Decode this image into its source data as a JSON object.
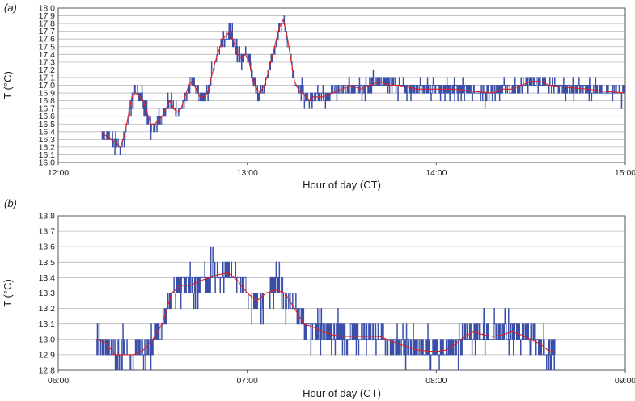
{
  "chart_data": [
    {
      "panel_label": "(a)",
      "type": "line",
      "xlabel": "Hour of day (CT)",
      "ylabel": "T (°C)",
      "x_tick_labels": [
        "12:00",
        "13:00",
        "14:00",
        "15:00"
      ],
      "x_ticks_hours": [
        12,
        13,
        14,
        15
      ],
      "xlim_hours": [
        12.0,
        15.0
      ],
      "y_tick_labels": [
        "16.0",
        "16.1",
        "16.2",
        "16.3",
        "16.4",
        "16.5",
        "16.6",
        "16.7",
        "16.8",
        "16.9",
        "17.0",
        "17.1",
        "17.2",
        "17.3",
        "17.4",
        "17.5",
        "17.6",
        "17.7",
        "17.8",
        "17.9",
        "18.0"
      ],
      "ylim": [
        16.0,
        18.0
      ],
      "grid": true,
      "colors": {
        "raw": "#3a4fa8",
        "smoothed": "#e02020"
      },
      "smoothed": {
        "x_hours": [
          12.23,
          12.25,
          12.28,
          12.31,
          12.33,
          12.35,
          12.37,
          12.39,
          12.41,
          12.43,
          12.45,
          12.47,
          12.49,
          12.51,
          12.53,
          12.55,
          12.57,
          12.59,
          12.61,
          12.63,
          12.65,
          12.67,
          12.69,
          12.71,
          12.73,
          12.75,
          12.77,
          12.79,
          12.81,
          12.83,
          12.85,
          12.87,
          12.89,
          12.91,
          12.93,
          12.95,
          12.97,
          12.99,
          13.01,
          13.03,
          13.05,
          13.07,
          13.09,
          13.11,
          13.13,
          13.15,
          13.17,
          13.19,
          13.21,
          13.23,
          13.25,
          13.27,
          13.29,
          13.31,
          13.33,
          13.35,
          13.4,
          13.45,
          13.5,
          13.55,
          13.6,
          13.65,
          13.7,
          13.75,
          13.8,
          13.9,
          14.0,
          14.1,
          14.2,
          14.3,
          14.35,
          14.4,
          14.45,
          14.5,
          14.55,
          14.6,
          14.7,
          14.8,
          14.9,
          15.0
        ],
        "y": [
          16.4,
          16.35,
          16.3,
          16.25,
          16.2,
          16.35,
          16.6,
          16.85,
          16.9,
          16.85,
          16.8,
          16.65,
          16.5,
          16.5,
          16.55,
          16.6,
          16.7,
          16.8,
          16.7,
          16.65,
          16.7,
          16.85,
          17.0,
          17.05,
          16.95,
          16.85,
          16.85,
          16.9,
          17.1,
          17.3,
          17.45,
          17.6,
          17.65,
          17.7,
          17.55,
          17.4,
          17.35,
          17.4,
          17.3,
          17.05,
          16.95,
          16.9,
          17.0,
          17.15,
          17.35,
          17.55,
          17.75,
          17.85,
          17.65,
          17.35,
          17.05,
          16.95,
          16.9,
          16.85,
          16.8,
          16.85,
          16.85,
          16.9,
          16.95,
          17.0,
          16.95,
          17.0,
          17.05,
          17.0,
          17.0,
          16.95,
          16.95,
          16.95,
          16.92,
          16.9,
          16.95,
          16.95,
          17.0,
          17.05,
          17.05,
          17.0,
          16.97,
          16.95,
          16.92,
          16.9
        ]
      }
    },
    {
      "panel_label": "(b)",
      "type": "line",
      "xlabel": "Hour of day (CT)",
      "ylabel": "T (°C)",
      "x_tick_labels": [
        "06:00",
        "07:00",
        "08:00",
        "09:00"
      ],
      "x_ticks_hours": [
        6,
        7,
        8,
        9
      ],
      "xlim_hours": [
        6.0,
        9.0
      ],
      "y_tick_labels": [
        "12.8",
        "12.9",
        "13.0",
        "13.1",
        "13.2",
        "13.3",
        "13.4",
        "13.5",
        "13.6",
        "13.7",
        "13.8"
      ],
      "ylim": [
        12.8,
        13.8
      ],
      "grid": true,
      "colors": {
        "raw": "#3a4fa8",
        "smoothed": "#e02020"
      },
      "smoothed": {
        "x_hours": [
          6.2,
          6.25,
          6.3,
          6.35,
          6.4,
          6.45,
          6.5,
          6.55,
          6.6,
          6.65,
          6.7,
          6.75,
          6.8,
          6.85,
          6.9,
          6.95,
          7.0,
          7.05,
          7.1,
          7.15,
          7.2,
          7.25,
          7.3,
          7.35,
          7.4,
          7.45,
          7.5,
          7.6,
          7.7,
          7.8,
          7.9,
          8.0,
          8.05,
          8.1,
          8.15,
          8.2,
          8.25,
          8.3,
          8.35,
          8.4,
          8.45,
          8.5,
          8.55,
          8.6,
          8.63
        ],
        "y": [
          13.0,
          12.98,
          12.9,
          12.9,
          12.9,
          12.93,
          13.0,
          13.1,
          13.3,
          13.35,
          13.35,
          13.38,
          13.4,
          13.42,
          13.43,
          13.38,
          13.3,
          13.25,
          13.3,
          13.32,
          13.3,
          13.2,
          13.1,
          13.08,
          13.05,
          13.03,
          13.02,
          13.02,
          13.02,
          12.97,
          12.93,
          12.92,
          12.93,
          12.97,
          13.02,
          13.05,
          13.03,
          13.02,
          13.03,
          13.05,
          13.03,
          13.0,
          12.97,
          12.92,
          12.92
        ]
      }
    }
  ]
}
